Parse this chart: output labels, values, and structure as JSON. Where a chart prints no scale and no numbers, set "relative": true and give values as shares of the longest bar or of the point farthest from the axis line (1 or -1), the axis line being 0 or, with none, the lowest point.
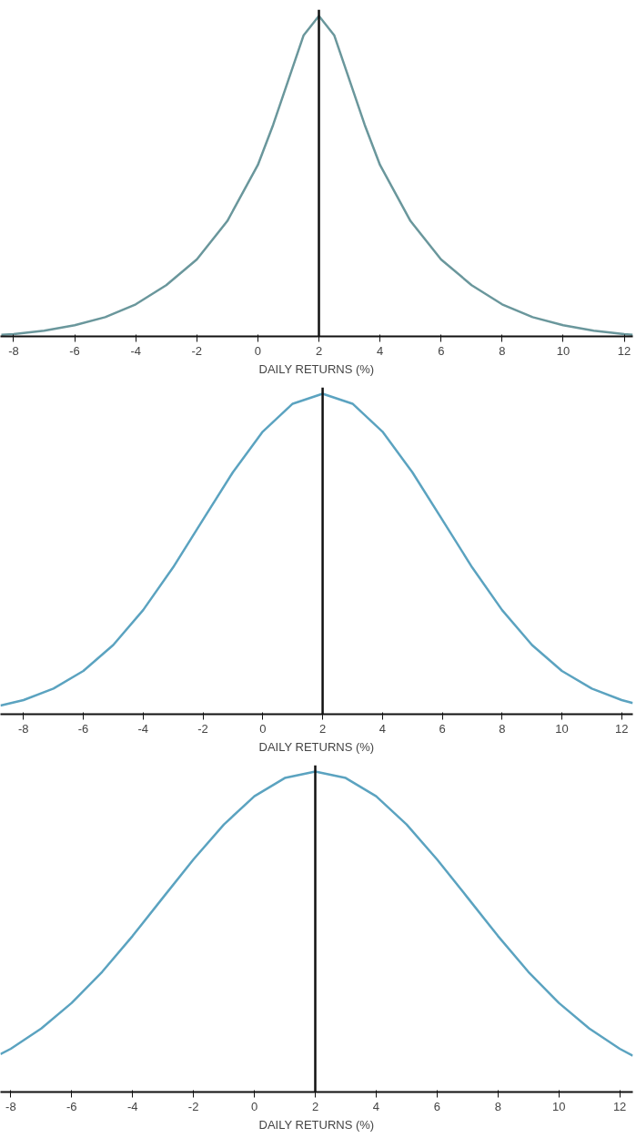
{
  "chart_data": [
    {
      "type": "line",
      "relative": true,
      "xlabel": "DAILY RETURNS (%)",
      "xlim": [
        -8.43,
        12.28
      ],
      "xticks": [
        -8,
        -6,
        -4,
        -2,
        0,
        2,
        4,
        6,
        8,
        10,
        12
      ],
      "grid": false,
      "marker": "none",
      "line_style": "solid",
      "x": [
        -8.4,
        -8,
        -7,
        -6,
        -5,
        -4,
        -3,
        -2,
        -1,
        0,
        0.5,
        1,
        1.5,
        2,
        2.5,
        3,
        3.5,
        4,
        5,
        6,
        7,
        8,
        9,
        10,
        11,
        12,
        12.28
      ],
      "series": [
        {
          "color": "#6a979c",
          "values": [
            0.005,
            0.007,
            0.018,
            0.035,
            0.06,
            0.1,
            0.16,
            0.24,
            0.36,
            0.535,
            0.66,
            0.8,
            0.94,
            1.0,
            0.94,
            0.8,
            0.66,
            0.535,
            0.36,
            0.24,
            0.16,
            0.1,
            0.06,
            0.035,
            0.018,
            0.007,
            0.005
          ]
        }
      ],
      "ref_lines": [
        {
          "axis": "x",
          "value": 2,
          "color": "#111111"
        }
      ]
    },
    {
      "type": "line",
      "relative": true,
      "xlabel": "DAILY RETURNS (%)",
      "xlim": [
        -8.77,
        12.37
      ],
      "xticks": [
        -8,
        -6,
        -4,
        -2,
        0,
        2,
        4,
        6,
        8,
        10,
        12
      ],
      "grid": false,
      "marker": "none",
      "line_style": "solid",
      "x": [
        -8.77,
        -8,
        -7,
        -6,
        -5,
        -4,
        -3,
        -2,
        -1,
        0,
        1,
        2,
        3,
        4,
        5,
        6,
        7,
        8,
        9,
        10,
        11,
        12,
        12.37
      ],
      "series": [
        {
          "color": "#5ba3c0",
          "values": [
            0.027,
            0.044,
            0.08,
            0.135,
            0.216,
            0.325,
            0.458,
            0.607,
            0.755,
            0.882,
            0.969,
            1.0,
            0.969,
            0.882,
            0.755,
            0.607,
            0.458,
            0.325,
            0.216,
            0.135,
            0.08,
            0.044,
            0.035
          ]
        }
      ],
      "ref_lines": [
        {
          "axis": "x",
          "value": 2,
          "color": "#111111"
        }
      ]
    },
    {
      "type": "line",
      "relative": true,
      "xlabel": "DAILY RETURNS (%)",
      "xlim": [
        -8.34,
        12.43
      ],
      "xticks": [
        -8,
        -6,
        -4,
        -2,
        0,
        2,
        4,
        6,
        8,
        10,
        12
      ],
      "grid": false,
      "marker": "none",
      "line_style": "solid",
      "x": [
        -8.34,
        -8,
        -7,
        -6,
        -5,
        -4,
        -3,
        -2,
        -1,
        0,
        1,
        2,
        3,
        4,
        5,
        6,
        7,
        8,
        9,
        10,
        11,
        12,
        12.43
      ],
      "series": [
        {
          "color": "#5ba3c0",
          "values": [
            0.118,
            0.135,
            0.198,
            0.278,
            0.375,
            0.487,
            0.607,
            0.726,
            0.835,
            0.923,
            0.98,
            1.0,
            0.98,
            0.923,
            0.835,
            0.726,
            0.607,
            0.487,
            0.375,
            0.278,
            0.198,
            0.135,
            0.113
          ]
        }
      ],
      "ref_lines": [
        {
          "axis": "x",
          "value": 2,
          "color": "#111111"
        }
      ]
    }
  ]
}
